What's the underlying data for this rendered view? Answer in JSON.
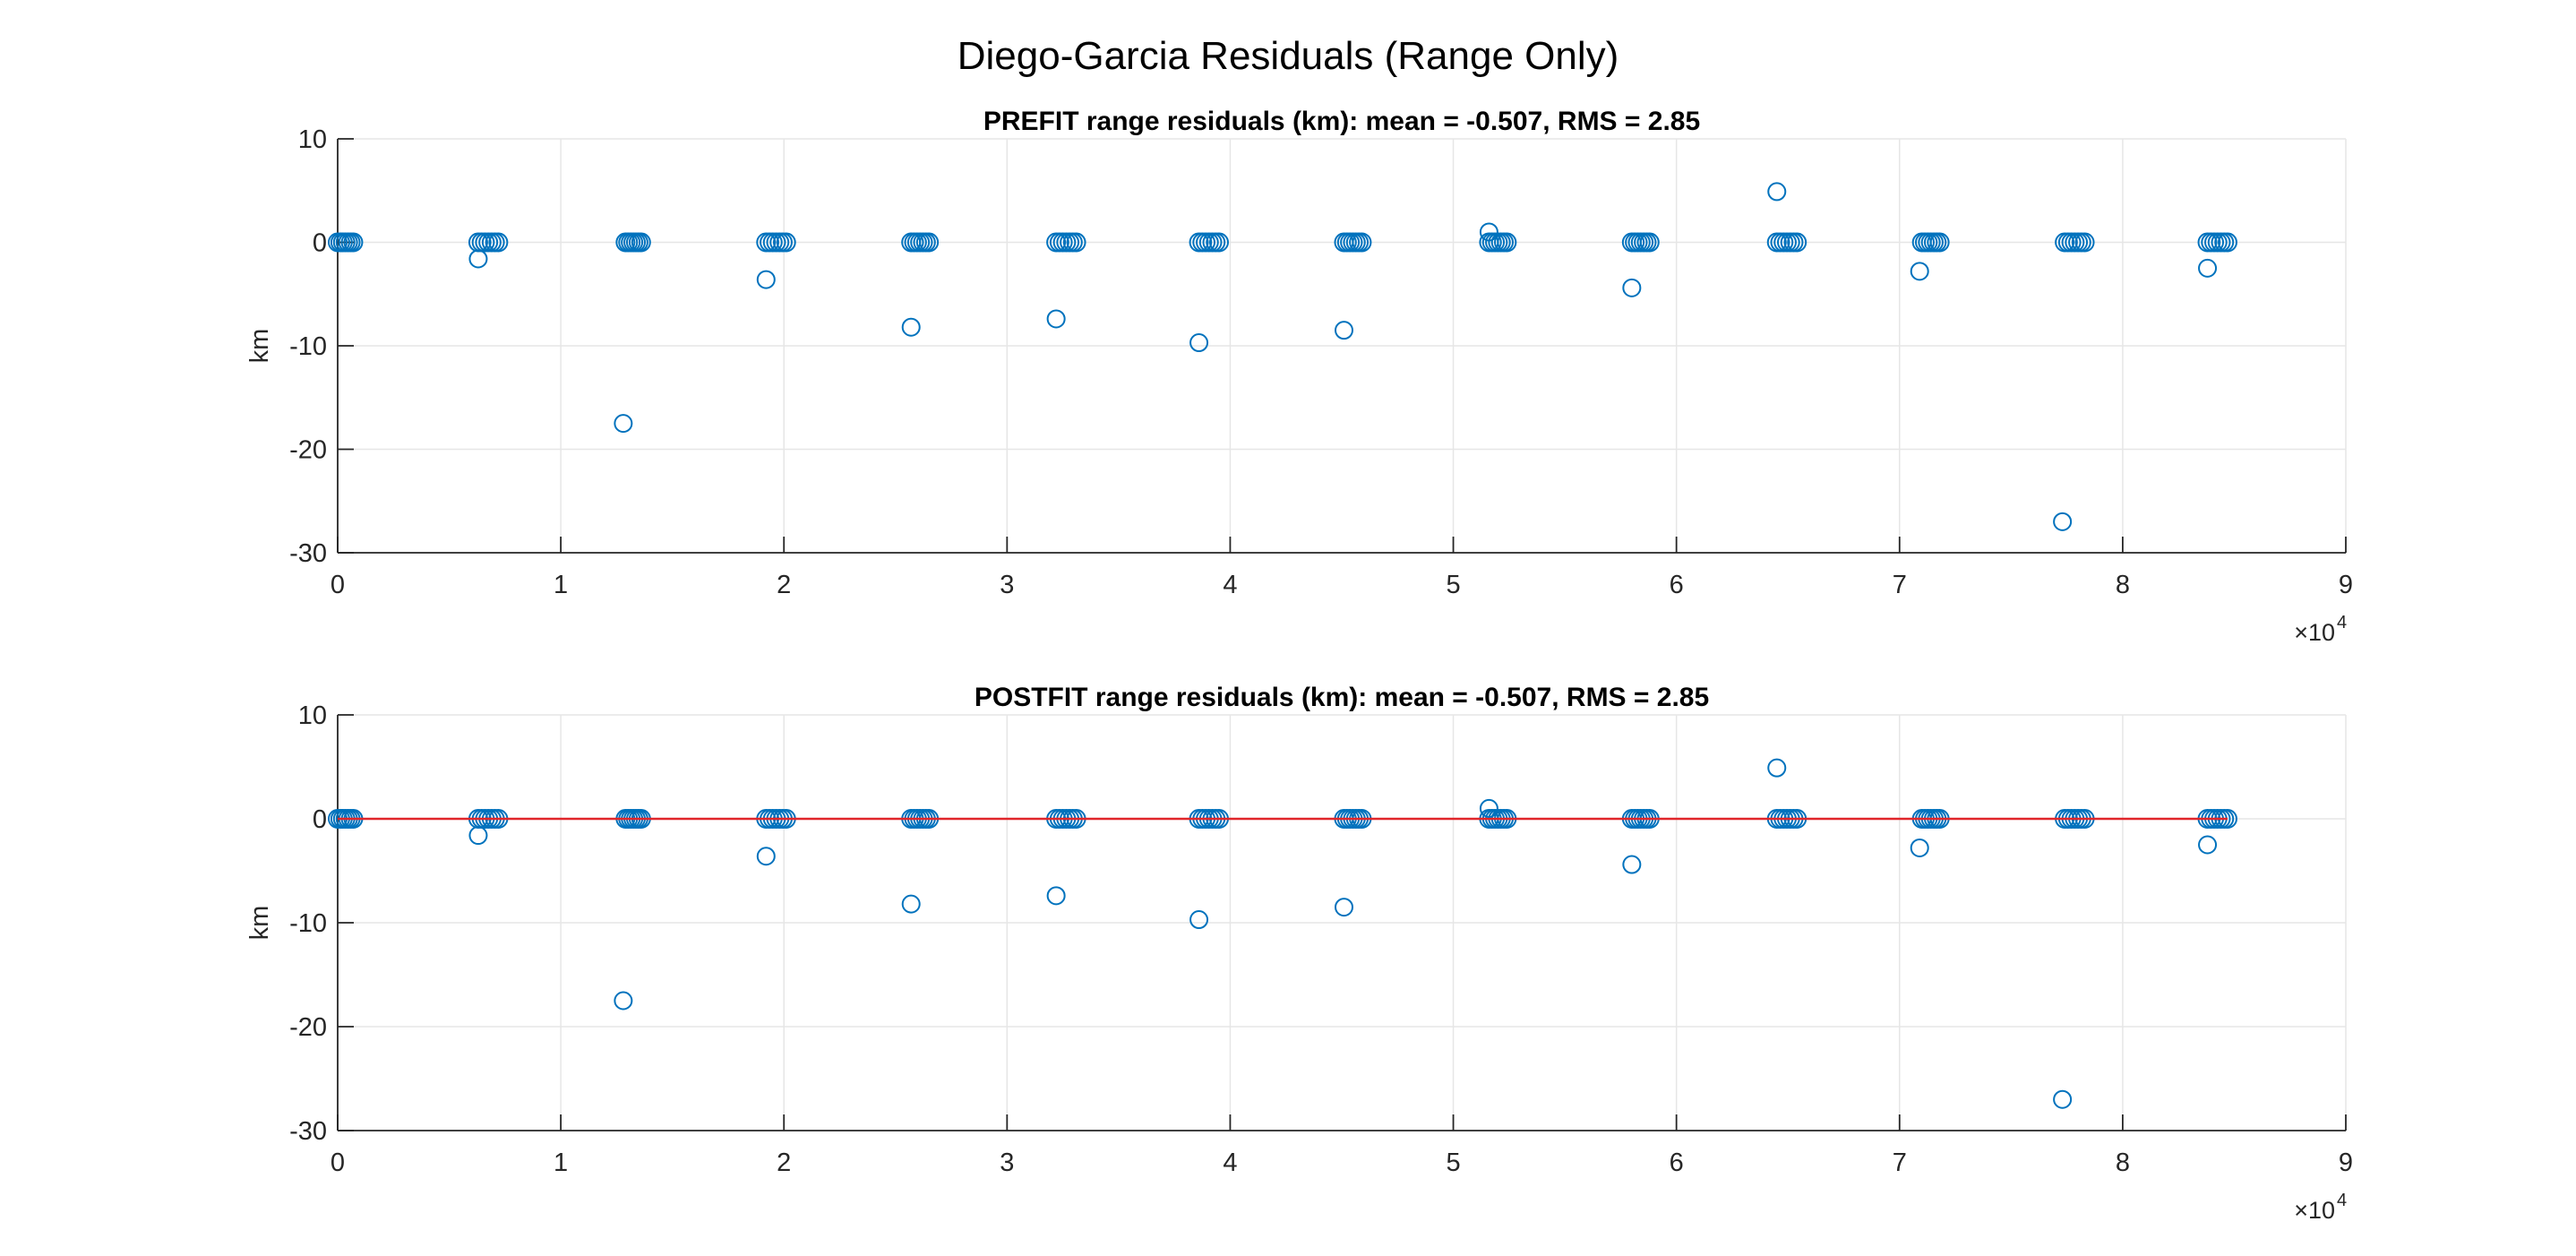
{
  "figure_title": "Diego-Garcia Residuals (Range Only)",
  "colors": {
    "marker": "#0072BD",
    "zero_line": "#E0262A",
    "grid": "#e6e6e6",
    "axis": "#262626"
  },
  "chart_data": [
    {
      "type": "scatter",
      "title": "PREFIT range residuals (km): mean = -0.507, RMS = 2.85",
      "xlabel": "",
      "ylabel": "km",
      "xlim": [
        0,
        90000
      ],
      "ylim": [
        -30,
        10
      ],
      "x_ticks": [
        0,
        1,
        2,
        3,
        4,
        5,
        6,
        7,
        8,
        9
      ],
      "x_exponent": "×10",
      "x_exponent_power": "4",
      "y_ticks": [
        10,
        0,
        -10,
        -20,
        -30
      ],
      "grid": true,
      "zero_line": false,
      "clusters": [
        {
          "x_start": 0,
          "x_end": 700,
          "y": 0
        },
        {
          "x_start": 6300,
          "x_end": 7200,
          "y": 0
        },
        {
          "x_start": 12900,
          "x_end": 13600,
          "y": 0
        },
        {
          "x_start": 19200,
          "x_end": 20100,
          "y": 0
        },
        {
          "x_start": 25700,
          "x_end": 26500,
          "y": 0
        },
        {
          "x_start": 32200,
          "x_end": 33100,
          "y": 0
        },
        {
          "x_start": 38600,
          "x_end": 39500,
          "y": 0
        },
        {
          "x_start": 45100,
          "x_end": 45900,
          "y": 0
        },
        {
          "x_start": 51600,
          "x_end": 52400,
          "y": 0
        },
        {
          "x_start": 58000,
          "x_end": 58800,
          "y": 0
        },
        {
          "x_start": 64500,
          "x_end": 65400,
          "y": 0
        },
        {
          "x_start": 71000,
          "x_end": 71800,
          "y": 0
        },
        {
          "x_start": 77400,
          "x_end": 78300,
          "y": 0
        },
        {
          "x_start": 83800,
          "x_end": 84700,
          "y": 0
        }
      ],
      "outliers": [
        {
          "x": 6300,
          "y": -1.6
        },
        {
          "x": 12800,
          "y": -17.5
        },
        {
          "x": 19200,
          "y": -3.6
        },
        {
          "x": 25700,
          "y": -8.2
        },
        {
          "x": 32200,
          "y": -7.4
        },
        {
          "x": 38600,
          "y": -9.7
        },
        {
          "x": 45100,
          "y": -8.5
        },
        {
          "x": 51600,
          "y": 1.0
        },
        {
          "x": 58000,
          "y": -4.4
        },
        {
          "x": 64500,
          "y": 4.9
        },
        {
          "x": 70900,
          "y": -2.8
        },
        {
          "x": 77300,
          "y": -27.0
        },
        {
          "x": 83800,
          "y": -2.5
        }
      ]
    },
    {
      "type": "scatter",
      "title": "POSTFIT range residuals (km): mean = -0.507, RMS = 2.85",
      "xlabel": "",
      "ylabel": "km",
      "xlim": [
        0,
        90000
      ],
      "ylim": [
        -30,
        10
      ],
      "x_ticks": [
        0,
        1,
        2,
        3,
        4,
        5,
        6,
        7,
        8,
        9
      ],
      "x_exponent": "×10",
      "x_exponent_power": "4",
      "y_ticks": [
        10,
        0,
        -10,
        -20,
        -30
      ],
      "grid": true,
      "zero_line": true,
      "clusters": [
        {
          "x_start": 0,
          "x_end": 700,
          "y": 0
        },
        {
          "x_start": 6300,
          "x_end": 7200,
          "y": 0
        },
        {
          "x_start": 12900,
          "x_end": 13600,
          "y": 0
        },
        {
          "x_start": 19200,
          "x_end": 20100,
          "y": 0
        },
        {
          "x_start": 25700,
          "x_end": 26500,
          "y": 0
        },
        {
          "x_start": 32200,
          "x_end": 33100,
          "y": 0
        },
        {
          "x_start": 38600,
          "x_end": 39500,
          "y": 0
        },
        {
          "x_start": 45100,
          "x_end": 45900,
          "y": 0
        },
        {
          "x_start": 51600,
          "x_end": 52400,
          "y": 0
        },
        {
          "x_start": 58000,
          "x_end": 58800,
          "y": 0
        },
        {
          "x_start": 64500,
          "x_end": 65400,
          "y": 0
        },
        {
          "x_start": 71000,
          "x_end": 71800,
          "y": 0
        },
        {
          "x_start": 77400,
          "x_end": 78300,
          "y": 0
        },
        {
          "x_start": 83800,
          "x_end": 84700,
          "y": 0
        }
      ],
      "outliers": [
        {
          "x": 6300,
          "y": -1.6
        },
        {
          "x": 12800,
          "y": -17.5
        },
        {
          "x": 19200,
          "y": -3.6
        },
        {
          "x": 25700,
          "y": -8.2
        },
        {
          "x": 32200,
          "y": -7.4
        },
        {
          "x": 38600,
          "y": -9.7
        },
        {
          "x": 45100,
          "y": -8.5
        },
        {
          "x": 51600,
          "y": 1.0
        },
        {
          "x": 58000,
          "y": -4.4
        },
        {
          "x": 64500,
          "y": 4.9
        },
        {
          "x": 70900,
          "y": -2.8
        },
        {
          "x": 77300,
          "y": -27.0
        },
        {
          "x": 83800,
          "y": -2.5
        }
      ]
    }
  ]
}
